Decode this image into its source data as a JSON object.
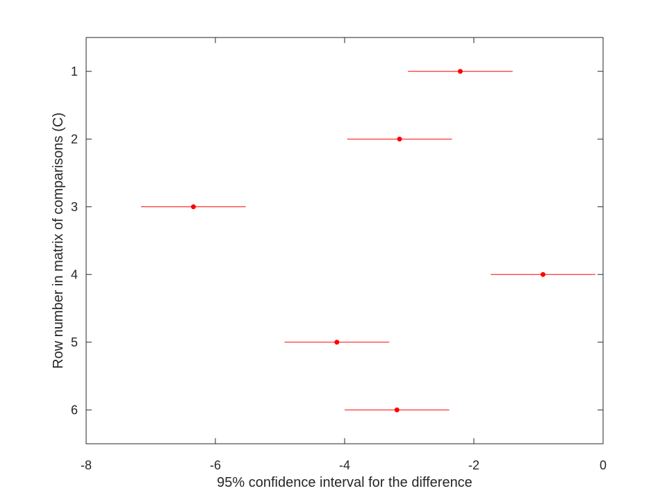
{
  "chart_data": {
    "type": "scatter",
    "subtype": "interval-plot",
    "title": "",
    "xlabel": "95% confidence interval for the difference",
    "ylabel": "Row number in matrix of comparisons (C)",
    "xlim": [
      -8,
      0
    ],
    "ylim": [
      0.5,
      6.5
    ],
    "y_reversed": true,
    "grid": false,
    "x_ticks": [
      -8,
      -6,
      -4,
      -2,
      0
    ],
    "x_tick_labels": [
      "-8",
      "-6",
      "-4",
      "-2",
      "0"
    ],
    "y_ticks": [
      1,
      2,
      3,
      4,
      5,
      6
    ],
    "y_tick_labels": [
      "1",
      "2",
      "3",
      "4",
      "5",
      "6"
    ],
    "color": "#ff0000",
    "points": [
      {
        "row": 1,
        "lower": -3.02,
        "estimate": -2.21,
        "upper": -1.4
      },
      {
        "row": 2,
        "lower": -3.96,
        "estimate": -3.15,
        "upper": -2.34
      },
      {
        "row": 3,
        "lower": -7.15,
        "estimate": -6.34,
        "upper": -5.53
      },
      {
        "row": 4,
        "lower": -1.74,
        "estimate": -0.93,
        "upper": -0.12
      },
      {
        "row": 5,
        "lower": -4.93,
        "estimate": -4.12,
        "upper": -3.31
      },
      {
        "row": 6,
        "lower": -4.0,
        "estimate": -3.19,
        "upper": -2.38
      }
    ]
  }
}
